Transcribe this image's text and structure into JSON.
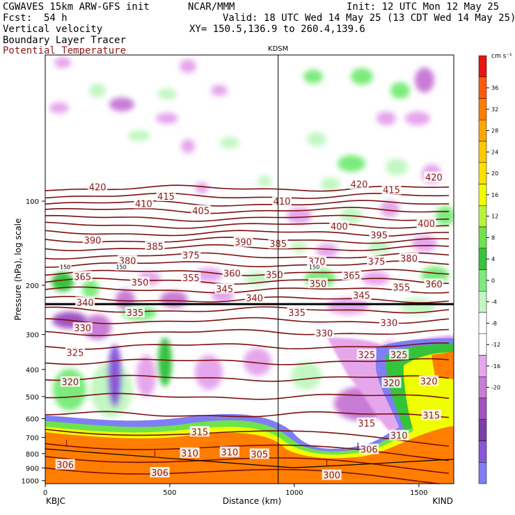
{
  "header": {
    "model": "CGWAVES 15km ARW-GFS init",
    "fcst_label": "Fcst:",
    "fcst_value": "54 h",
    "org": "NCAR/MMM",
    "init": "Init: 12 UTC Mon 12 May 25",
    "valid": "Valid: 18 UTC Wed 14 May 25 (13 CDT Wed 14 May 25)",
    "xy": "XY= 150.5,136.9 to 260.4,139.6",
    "field1": "Vertical velocity",
    "field2": "Boundary Layer Tracer",
    "field3": "Potential Temperature"
  },
  "chart_data": {
    "type": "heatmap",
    "title": "Vertical velocity",
    "ylabel": "Pressure (hPa), log scale",
    "xlabel": "Distance (km)",
    "x_ticks": [
      "0",
      "500",
      "1000",
      "1500"
    ],
    "y_ticks": [
      "100",
      "200",
      "300",
      "400",
      "500",
      "600",
      "700",
      "800",
      "900",
      "1000"
    ],
    "left_station": "KBJC",
    "right_station": "KIND",
    "mid_station": "KDSM",
    "mid_station_km": 935,
    "xlim": [
      0,
      1640
    ],
    "ylim_hpa": [
      1025,
      30
    ],
    "colorbar_unit": "cm s⁻¹",
    "colorbar_ticks": [
      "36",
      "32",
      "28",
      "24",
      "20",
      "16",
      "12",
      "8",
      "4",
      "0",
      "-4",
      "-8",
      "-12",
      "-16",
      "-20"
    ],
    "colorbar_colors": [
      "#e8150f",
      "#ff5a0a",
      "#ff7d00",
      "#ffa700",
      "#ffc800",
      "#ffe100",
      "#f0ff00",
      "#b8f23c",
      "#6ee34b",
      "#36c33c",
      "#7ceb7c",
      "#c2f7c2",
      "#ffffff",
      "#ffffff",
      "#e6a6ec",
      "#c97bd6",
      "#a152c0",
      "#7c3fa8",
      "#8858d8",
      "#7f7ef4"
    ],
    "theta_labels": [
      {
        "v": "420",
        "km": 210,
        "p": 89
      },
      {
        "v": "410",
        "km": 395,
        "p": 102
      },
      {
        "v": "415",
        "km": 485,
        "p": 96
      },
      {
        "v": "405",
        "km": 625,
        "p": 108
      },
      {
        "v": "410",
        "km": 950,
        "p": 100
      },
      {
        "v": "420",
        "km": 1260,
        "p": 87
      },
      {
        "v": "415",
        "km": 1390,
        "p": 91
      },
      {
        "v": "420",
        "km": 1560,
        "p": 82
      },
      {
        "v": "400",
        "km": 1180,
        "p": 123
      },
      {
        "v": "395",
        "km": 1340,
        "p": 132
      },
      {
        "v": "400",
        "km": 1530,
        "p": 120
      },
      {
        "v": "390",
        "km": 190,
        "p": 138
      },
      {
        "v": "380",
        "km": 330,
        "p": 163
      },
      {
        "v": "385",
        "km": 440,
        "p": 145
      },
      {
        "v": "375",
        "km": 585,
        "p": 156
      },
      {
        "v": "390",
        "km": 795,
        "p": 140
      },
      {
        "v": "385",
        "km": 935,
        "p": 142
      },
      {
        "v": "370",
        "km": 1090,
        "p": 164
      },
      {
        "v": "375",
        "km": 1330,
        "p": 164
      },
      {
        "v": "380",
        "km": 1460,
        "p": 160
      },
      {
        "v": "365",
        "km": 150,
        "p": 186
      },
      {
        "v": "350",
        "km": 380,
        "p": 195
      },
      {
        "v": "355",
        "km": 585,
        "p": 188
      },
      {
        "v": "360",
        "km": 750,
        "p": 181
      },
      {
        "v": "350",
        "km": 920,
        "p": 183
      },
      {
        "v": "365",
        "km": 1230,
        "p": 184
      },
      {
        "v": "350",
        "km": 1095,
        "p": 197
      },
      {
        "v": "345",
        "km": 720,
        "p": 206
      },
      {
        "v": "355",
        "km": 1430,
        "p": 203
      },
      {
        "v": "360",
        "km": 1560,
        "p": 198
      },
      {
        "v": "340",
        "km": 160,
        "p": 230
      },
      {
        "v": "340",
        "km": 840,
        "p": 222
      },
      {
        "v": "345",
        "km": 1270,
        "p": 217
      },
      {
        "v": "335",
        "km": 360,
        "p": 250
      },
      {
        "v": "335",
        "km": 1010,
        "p": 250
      },
      {
        "v": "330",
        "km": 150,
        "p": 284
      },
      {
        "v": "330",
        "km": 1120,
        "p": 296
      },
      {
        "v": "330",
        "km": 1380,
        "p": 272
      },
      {
        "v": "325",
        "km": 120,
        "p": 348
      },
      {
        "v": "325",
        "km": 1290,
        "p": 354
      },
      {
        "v": "325",
        "km": 1420,
        "p": 354
      },
      {
        "v": "320",
        "km": 100,
        "p": 443
      },
      {
        "v": "320",
        "km": 1390,
        "p": 447
      },
      {
        "v": "320",
        "km": 1540,
        "p": 440
      },
      {
        "v": "315",
        "km": 620,
        "p": 668
      },
      {
        "v": "315",
        "km": 1290,
        "p": 622
      },
      {
        "v": "315",
        "km": 1550,
        "p": 583
      },
      {
        "v": "310",
        "km": 580,
        "p": 796
      },
      {
        "v": "310",
        "km": 740,
        "p": 790
      },
      {
        "v": "310",
        "km": 1420,
        "p": 689
      },
      {
        "v": "305",
        "km": 860,
        "p": 803
      },
      {
        "v": "306",
        "km": 1300,
        "p": 772
      },
      {
        "v": "306",
        "km": 80,
        "p": 876
      },
      {
        "v": "306",
        "km": 460,
        "p": 935
      },
      {
        "v": "300",
        "km": 1150,
        "p": 955
      },
      {
        "v": "150",
        "km": 80,
        "p": 172
      },
      {
        "v": "150",
        "km": 305,
        "p": 172
      },
      {
        "v": "150",
        "km": 1080,
        "p": 172
      }
    ],
    "low_markers": [
      {
        "km": 90,
        "p": 735
      },
      {
        "km": 445,
        "p": 803
      },
      {
        "km": 1135,
        "p": 860
      },
      {
        "km": 1260,
        "p": 752
      }
    ]
  }
}
